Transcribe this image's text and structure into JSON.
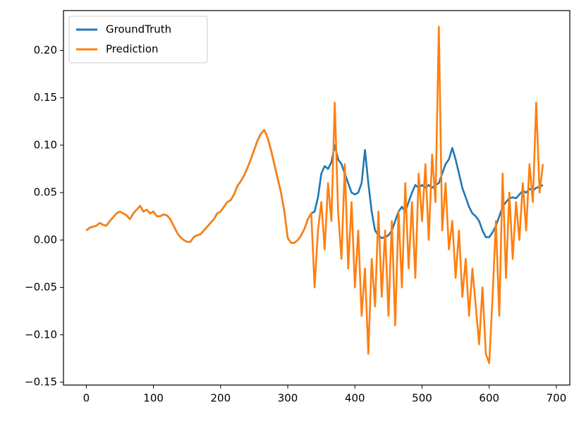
{
  "chart_data": {
    "type": "line",
    "x": [
      0,
      5,
      10,
      15,
      20,
      25,
      30,
      35,
      40,
      45,
      50,
      55,
      60,
      65,
      70,
      75,
      80,
      85,
      90,
      95,
      100,
      105,
      110,
      115,
      120,
      125,
      130,
      135,
      140,
      145,
      150,
      155,
      160,
      165,
      170,
      175,
      180,
      185,
      190,
      195,
      200,
      205,
      210,
      215,
      220,
      225,
      230,
      235,
      240,
      245,
      250,
      255,
      260,
      265,
      270,
      275,
      280,
      285,
      290,
      295,
      300,
      305,
      310,
      315,
      320,
      325,
      330,
      335,
      340,
      345,
      350,
      355,
      360,
      365,
      370,
      375,
      380,
      385,
      390,
      395,
      400,
      405,
      410,
      415,
      420,
      425,
      430,
      435,
      440,
      445,
      450,
      455,
      460,
      465,
      470,
      475,
      480,
      485,
      490,
      495,
      500,
      505,
      510,
      515,
      520,
      525,
      530,
      535,
      540,
      545,
      550,
      555,
      560,
      565,
      570,
      575,
      580,
      585,
      590,
      595,
      600,
      605,
      610,
      615,
      620,
      625,
      630,
      635,
      640,
      645,
      650,
      655,
      660,
      665,
      670,
      675,
      680
    ],
    "series": [
      {
        "name": "GroundTruth",
        "color": "#1f77b4",
        "values": [
          0.01,
          0.013,
          0.014,
          0.015,
          0.018,
          0.016,
          0.015,
          0.02,
          0.024,
          0.028,
          0.03,
          0.028,
          0.026,
          0.022,
          0.028,
          0.032,
          0.036,
          0.03,
          0.032,
          0.028,
          0.03,
          0.025,
          0.025,
          0.027,
          0.026,
          0.022,
          0.015,
          0.008,
          0.003,
          0.0,
          -0.002,
          -0.002,
          0.003,
          0.005,
          0.006,
          0.01,
          0.014,
          0.018,
          0.022,
          0.028,
          0.03,
          0.035,
          0.04,
          0.042,
          0.048,
          0.057,
          0.062,
          0.068,
          0.076,
          0.085,
          0.095,
          0.105,
          0.112,
          0.116,
          0.108,
          0.095,
          0.08,
          0.065,
          0.05,
          0.03,
          0.002,
          -0.003,
          -0.003,
          0.0,
          0.005,
          0.012,
          0.022,
          0.028,
          0.03,
          0.045,
          0.07,
          0.078,
          0.075,
          0.082,
          0.1,
          0.085,
          0.08,
          0.07,
          0.06,
          0.05,
          0.048,
          0.05,
          0.06,
          0.095,
          0.06,
          0.03,
          0.01,
          0.005,
          0.002,
          0.003,
          0.005,
          0.01,
          0.02,
          0.03,
          0.035,
          0.03,
          0.04,
          0.05,
          0.058,
          0.055,
          0.058,
          0.055,
          0.058,
          0.055,
          0.058,
          0.06,
          0.07,
          0.08,
          0.085,
          0.097,
          0.085,
          0.07,
          0.055,
          0.045,
          0.035,
          0.028,
          0.025,
          0.02,
          0.01,
          0.003,
          0.003,
          0.008,
          0.015,
          0.025,
          0.035,
          0.04,
          0.044,
          0.045,
          0.044,
          0.048,
          0.052,
          0.05,
          0.054,
          0.052,
          0.055,
          0.056,
          0.058
        ]
      },
      {
        "name": "Prediction",
        "color": "#ff7f0e",
        "values": [
          0.01,
          0.013,
          0.014,
          0.015,
          0.018,
          0.016,
          0.015,
          0.02,
          0.024,
          0.028,
          0.03,
          0.028,
          0.026,
          0.022,
          0.028,
          0.032,
          0.036,
          0.03,
          0.032,
          0.028,
          0.03,
          0.025,
          0.025,
          0.027,
          0.026,
          0.022,
          0.015,
          0.008,
          0.003,
          0.0,
          -0.002,
          -0.002,
          0.003,
          0.005,
          0.006,
          0.01,
          0.014,
          0.018,
          0.022,
          0.028,
          0.03,
          0.035,
          0.04,
          0.042,
          0.048,
          0.057,
          0.062,
          0.068,
          0.076,
          0.085,
          0.095,
          0.105,
          0.112,
          0.116,
          0.108,
          0.095,
          0.08,
          0.065,
          0.05,
          0.03,
          0.002,
          -0.003,
          -0.003,
          0.0,
          0.005,
          0.012,
          0.022,
          0.028,
          -0.05,
          0.01,
          0.04,
          -0.01,
          0.06,
          0.02,
          0.145,
          0.03,
          -0.02,
          0.08,
          -0.03,
          0.04,
          -0.05,
          0.01,
          -0.08,
          -0.03,
          -0.12,
          -0.02,
          -0.07,
          0.03,
          -0.06,
          0.01,
          -0.08,
          0.02,
          -0.09,
          0.03,
          -0.05,
          0.06,
          -0.03,
          0.04,
          -0.04,
          0.07,
          0.02,
          0.08,
          0.0,
          0.09,
          0.04,
          0.225,
          0.01,
          0.06,
          -0.01,
          0.02,
          -0.04,
          0.01,
          -0.06,
          -0.02,
          -0.08,
          -0.03,
          -0.07,
          -0.11,
          -0.05,
          -0.12,
          -0.13,
          -0.06,
          0.02,
          -0.08,
          0.07,
          -0.04,
          0.05,
          -0.02,
          0.04,
          0.0,
          0.06,
          0.01,
          0.08,
          0.04,
          0.145,
          0.05,
          0.08
        ]
      }
    ],
    "xlim": [
      -34,
      720
    ],
    "xticks": [
      0,
      100,
      200,
      300,
      400,
      500,
      600,
      700
    ],
    "ylim": [
      -0.153,
      0.242
    ],
    "yticks": [
      {
        "value": -0.15,
        "label": "−0.15"
      },
      {
        "value": -0.1,
        "label": "−0.10"
      },
      {
        "value": -0.05,
        "label": "−0.05"
      },
      {
        "value": 0,
        "label": "0.00"
      },
      0.05,
      {
        "value": 0.1,
        "label": "0.10"
      },
      0.15,
      {
        "value": 0.2,
        "label": "0.20"
      }
    ],
    "legend": "upper left"
  }
}
